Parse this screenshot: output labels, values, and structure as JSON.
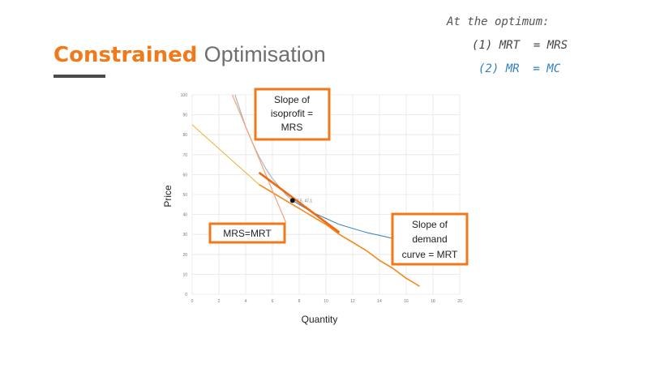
{
  "slide": {
    "title_bold": "Constrained",
    "title_light": "Optimisation"
  },
  "notes": {
    "heading": "At the optimum:",
    "line1": "(1) MRT  = MRS",
    "line2": "(2) MR  = MC",
    "heading_color": "#555555",
    "line1_color": "#444444",
    "line2_color": "#2f7fc2"
  },
  "chart_data": {
    "type": "line",
    "xlabel": "Quantity",
    "ylabel": "Price",
    "xlim": [
      0,
      20
    ],
    "ylim": [
      0,
      100
    ],
    "x_ticks": [
      "0",
      "2",
      "4",
      "6",
      "8",
      "10",
      "12",
      "14",
      "16",
      "18",
      "20"
    ],
    "y_ticks": [
      "0",
      "10",
      "20",
      "30",
      "40",
      "50",
      "60",
      "70",
      "80",
      "90",
      "100"
    ],
    "series": [
      {
        "color": "#f0b030",
        "x": [
          0,
          1,
          2,
          3,
          4,
          5
        ],
        "y": [
          85,
          79,
          73,
          67,
          61,
          55
        ]
      },
      {
        "color": "#f28a1e",
        "x": [
          5,
          6,
          7,
          8,
          9,
          10,
          11,
          12,
          13,
          14,
          15,
          16,
          17
        ],
        "y": [
          55,
          51,
          47,
          43,
          39,
          35,
          30,
          26,
          22,
          17,
          13,
          8,
          4
        ]
      },
      {
        "color": "#2f7fc2",
        "x": [
          7.5,
          9,
          10,
          11,
          12,
          13,
          14,
          15,
          16,
          17,
          18,
          19,
          20
        ],
        "y": [
          47,
          41,
          38,
          35,
          33,
          31,
          29.5,
          28,
          27,
          26,
          25,
          24.5,
          24
        ]
      },
      {
        "color": "#a9b4bf",
        "x": [
          3.2,
          3.6,
          4,
          4.5,
          5,
          5.5,
          6,
          6.5,
          7,
          7.5
        ],
        "y": [
          100,
          92,
          84,
          76,
          69,
          63,
          58,
          54,
          50,
          47
        ]
      },
      {
        "color": "#f3a27a",
        "x": [
          3,
          3.5,
          4,
          4.5,
          5,
          5.5,
          6,
          6.5,
          7
        ],
        "y": [
          100,
          92,
          84,
          76,
          68,
          60,
          52,
          44,
          36
        ]
      },
      {
        "color": "#ee6a12",
        "x": [
          5,
          6,
          7,
          8,
          9,
          10,
          11
        ],
        "y": [
          61,
          56,
          51,
          46,
          41,
          36,
          31
        ]
      }
    ],
    "point": {
      "x": 7.5,
      "y": 47,
      "label": "7.5, 47.1"
    },
    "annotations": [
      {
        "lines": [
          "Slope of",
          "isoprofit =",
          "MRS"
        ]
      },
      {
        "lines": [
          "MRS=MRT"
        ]
      },
      {
        "lines": [
          "Slope of",
          "demand",
          "curve = MRT"
        ]
      }
    ],
    "grid": true
  }
}
